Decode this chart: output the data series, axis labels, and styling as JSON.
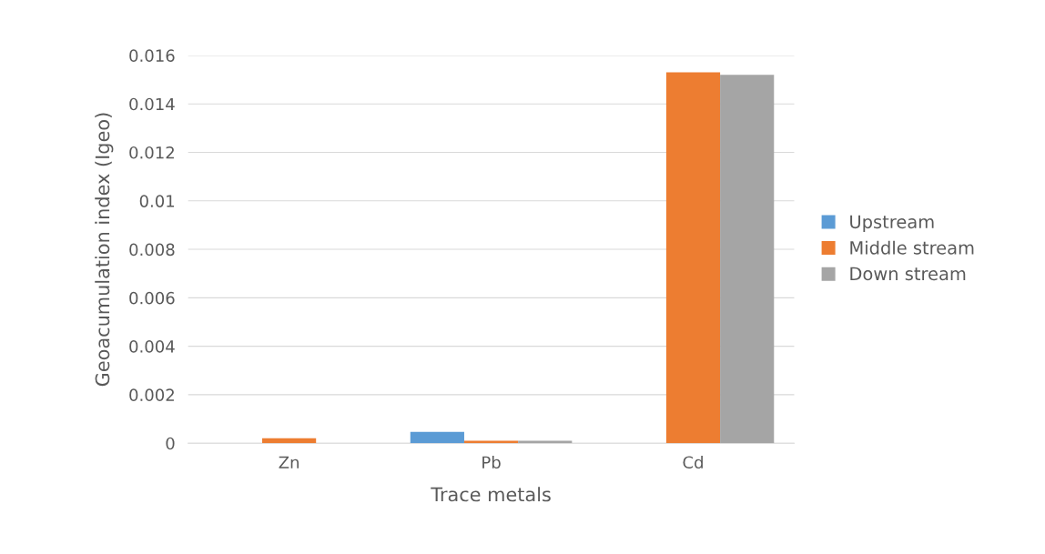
{
  "chart_data": {
    "type": "bar",
    "xlabel": "Trace metals",
    "ylabel": "Geoacumulation index (Igeo)",
    "categories": [
      "Zn",
      "Pb",
      "Cd"
    ],
    "series": [
      {
        "name": "Upstream",
        "color": "#5b9bd5",
        "values": [
          0,
          0.00047,
          0
        ]
      },
      {
        "name": "Middle stream",
        "color": "#ed7d31",
        "values": [
          0.0002,
          0.0001,
          0.0153
        ]
      },
      {
        "name": "Down stream",
        "color": "#a5a5a5",
        "values": [
          0,
          0.0001,
          0.0152
        ]
      }
    ],
    "ylim": [
      0,
      0.016
    ],
    "yticks": [
      0,
      0.002,
      0.004,
      0.006,
      0.008,
      0.01,
      0.012,
      0.014,
      0.016
    ],
    "grid": "y",
    "legend": "right"
  }
}
